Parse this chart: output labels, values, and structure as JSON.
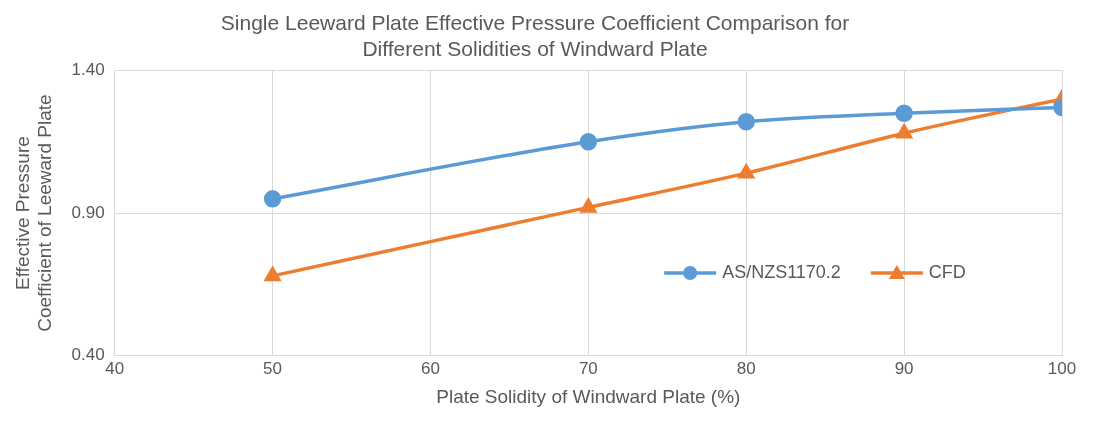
{
  "chart_data": {
    "type": "line",
    "title": "Single Leeward Plate Effective Pressure Coefficient Comparison for Different Solidities of Windward Plate",
    "xlabel": "Plate Solidity of Windward Plate (%)",
    "ylabel": "Effective Pressure Coefficient of Leeward Plate",
    "x": [
      50,
      70,
      80,
      90,
      100
    ],
    "series": [
      {
        "name": "AS/NZS1170.2",
        "color": "#5b9bd5",
        "values": [
          0.95,
          1.15,
          1.22,
          1.25,
          1.27
        ],
        "marker": "circle"
      },
      {
        "name": "CFD",
        "color": "#ed7d31",
        "values": [
          0.68,
          0.92,
          1.04,
          1.18,
          1.3
        ],
        "marker": "triangle"
      }
    ],
    "xlim": [
      40,
      100
    ],
    "xticks": [
      40,
      50,
      60,
      70,
      80,
      90,
      100
    ],
    "ylim": [
      0.4,
      1.4
    ],
    "yticks": [
      {
        "value": 0.4,
        "label": "0.40"
      },
      {
        "value": 0.9,
        "label": "0.90"
      },
      {
        "value": 1.4,
        "label": "1.40"
      }
    ],
    "grid": true,
    "legend": "right"
  }
}
